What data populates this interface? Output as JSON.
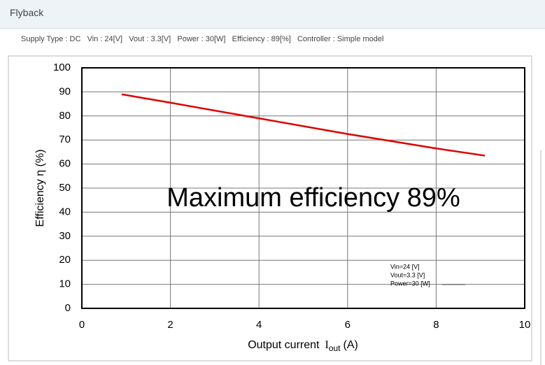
{
  "header": {
    "title": "Flyback"
  },
  "info": "Supply Type : DC   Vin : 24[V]   Vout : 3.3[V]   Power : 30[W]   Efficiency : 89[%]   Controller : Simple model",
  "chart_data": {
    "type": "line",
    "ylabel": "Efficiency  η (%)",
    "xlabel": {
      "text": "Output current",
      "symbol": "I",
      "subscript": "out",
      "unit": "(A)"
    },
    "x": [
      0.9,
      2,
      4,
      6,
      8,
      9.1
    ],
    "values": [
      89,
      85.5,
      79,
      72.5,
      66.5,
      63.5
    ],
    "color": "#e00000",
    "xlim": [
      0,
      10
    ],
    "xticks": [
      0,
      2,
      4,
      6,
      8,
      10
    ],
    "ylim": [
      0,
      100
    ],
    "yticks": [
      0,
      10,
      20,
      30,
      40,
      50,
      60,
      70,
      80,
      90,
      100
    ],
    "grid": true,
    "annotation": "Maximum efficiency 89%",
    "notes": [
      "Vin=24 [V]",
      "Vout=3.3 [V]",
      "Power=30 [W]"
    ]
  }
}
